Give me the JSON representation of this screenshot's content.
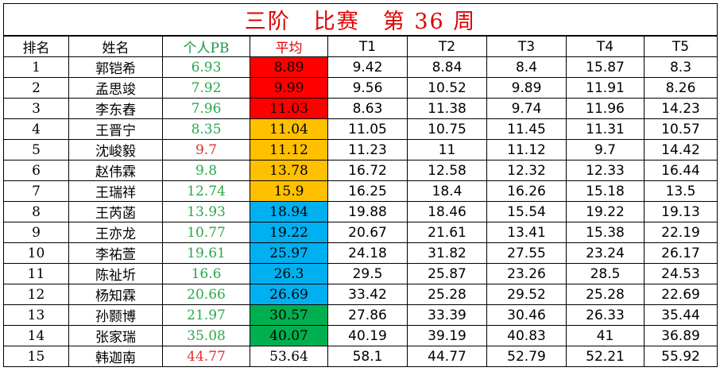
{
  "title": "三阶　比赛　第 36 周",
  "headers": {
    "rank": "排名",
    "name": "姓名",
    "pb": "个人PB",
    "avg": "平均",
    "t1": "T1",
    "t2": "T2",
    "t3": "T3",
    "t4": "T4",
    "t5": "T5"
  },
  "colors": {
    "title": "#e00000",
    "pb_header": "#1a9a40",
    "avg_header": "#e00000",
    "pb_normal": "#2aa84a",
    "pb_highlight": "#e03030",
    "avg_tier_red": "#ff0000",
    "avg_tier_orange": "#ffc000",
    "avg_tier_blue": "#00b0f0",
    "avg_tier_green": "#00b050"
  },
  "rows": [
    {
      "rank": "1",
      "name": "郭铠希",
      "pb": "6.93",
      "pb_color": "green",
      "avg": "8.89",
      "avg_bg": "red",
      "t1": "9.42",
      "t2": "8.84",
      "t3": "8.4",
      "t4": "15.87",
      "t5": "8.3"
    },
    {
      "rank": "2",
      "name": "孟思竣",
      "pb": "7.92",
      "pb_color": "green",
      "avg": "9.99",
      "avg_bg": "red",
      "t1": "9.56",
      "t2": "10.52",
      "t3": "9.89",
      "t4": "11.91",
      "t5": "8.26"
    },
    {
      "rank": "3",
      "name": "李东舂",
      "pb": "7.96",
      "pb_color": "green",
      "avg": "11.03",
      "avg_bg": "red",
      "t1": "8.63",
      "t2": "11.38",
      "t3": "9.74",
      "t4": "11.96",
      "t5": "14.23"
    },
    {
      "rank": "4",
      "name": "王晋宁",
      "pb": "8.35",
      "pb_color": "green",
      "avg": "11.04",
      "avg_bg": "orange",
      "t1": "11.05",
      "t2": "10.75",
      "t3": "11.45",
      "t4": "11.31",
      "t5": "10.57"
    },
    {
      "rank": "5",
      "name": "沈峻毅",
      "pb": "9.7",
      "pb_color": "red",
      "avg": "11.12",
      "avg_bg": "orange",
      "t1": "11.23",
      "t2": "11",
      "t3": "11.12",
      "t4": "9.7",
      "t5": "14.42"
    },
    {
      "rank": "6",
      "name": "赵伟霖",
      "pb": "9.8",
      "pb_color": "green",
      "avg": "13.78",
      "avg_bg": "orange",
      "t1": "16.72",
      "t2": "12.58",
      "t3": "12.32",
      "t4": "12.33",
      "t5": "16.44"
    },
    {
      "rank": "7",
      "name": "王瑞祥",
      "pb": "12.74",
      "pb_color": "green",
      "avg": "15.9",
      "avg_bg": "orange",
      "t1": "16.25",
      "t2": "18.4",
      "t3": "16.26",
      "t4": "15.18",
      "t5": "13.5"
    },
    {
      "rank": "8",
      "name": "王芮菡",
      "pb": "13.93",
      "pb_color": "green",
      "avg": "18.94",
      "avg_bg": "blue",
      "t1": "19.88",
      "t2": "18.46",
      "t3": "15.54",
      "t4": "19.22",
      "t5": "19.13"
    },
    {
      "rank": "9",
      "name": "王亦龙",
      "pb": "10.77",
      "pb_color": "green",
      "avg": "19.22",
      "avg_bg": "blue",
      "t1": "20.67",
      "t2": "21.61",
      "t3": "13.41",
      "t4": "15.38",
      "t5": "22.19"
    },
    {
      "rank": "10",
      "name": "李祐萱",
      "pb": "19.61",
      "pb_color": "green",
      "avg": "25.97",
      "avg_bg": "blue",
      "t1": "24.18",
      "t2": "31.82",
      "t3": "27.55",
      "t4": "23.24",
      "t5": "26.17"
    },
    {
      "rank": "11",
      "name": "陈祉圻",
      "pb": "16.6",
      "pb_color": "green",
      "avg": "26.3",
      "avg_bg": "blue",
      "t1": "29.5",
      "t2": "25.87",
      "t3": "23.26",
      "t4": "28.5",
      "t5": "24.53"
    },
    {
      "rank": "12",
      "name": "杨知霖",
      "pb": "20.66",
      "pb_color": "green",
      "avg": "26.69",
      "avg_bg": "blue",
      "t1": "33.42",
      "t2": "25.28",
      "t3": "29.52",
      "t4": "25.28",
      "t5": "22.69"
    },
    {
      "rank": "13",
      "name": "孙颢博",
      "pb": "21.97",
      "pb_color": "green",
      "avg": "30.57",
      "avg_bg": "green",
      "t1": "27.86",
      "t2": "33.39",
      "t3": "30.46",
      "t4": "26.33",
      "t5": "35.44"
    },
    {
      "rank": "14",
      "name": "张家瑞",
      "pb": "35.08",
      "pb_color": "green",
      "avg": "40.07",
      "avg_bg": "green",
      "t1": "40.19",
      "t2": "39.19",
      "t3": "40.83",
      "t4": "41",
      "t5": "36.89"
    },
    {
      "rank": "15",
      "name": "韩迦南",
      "pb": "44.77",
      "pb_color": "red",
      "avg": "53.64",
      "avg_bg": "none",
      "t1": "58.1",
      "t2": "44.77",
      "t3": "52.79",
      "t4": "52.21",
      "t5": "55.92"
    }
  ]
}
